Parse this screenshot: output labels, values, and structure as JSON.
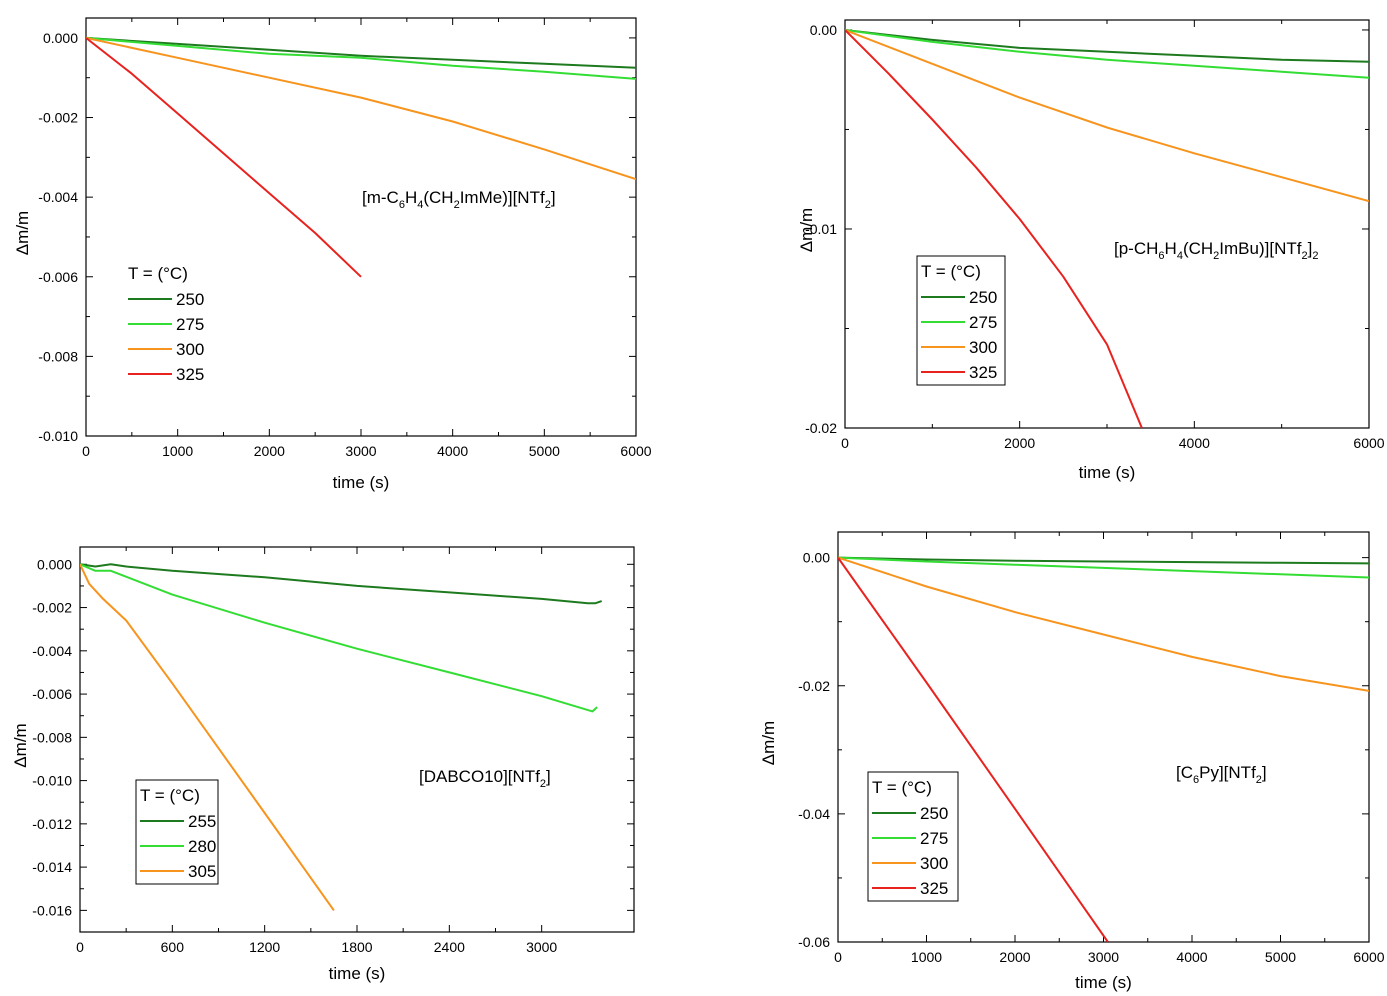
{
  "chart_data": [
    {
      "type": "line",
      "xlabel": "time (s)",
      "ylabel": "Δm/m",
      "xlim": [
        0,
        6000
      ],
      "ylim": [
        -0.01,
        0.0005
      ],
      "xticks": [
        "0",
        "1000",
        "2000",
        "3000",
        "4000",
        "5000",
        "6000"
      ],
      "yticks": [
        "0.000",
        "-0.002",
        "-0.004",
        "-0.006",
        "-0.008",
        "-0.010"
      ],
      "annotation": {
        "parts": [
          [
            "[m-C",
            ""
          ],
          [
            "6",
            "sub"
          ],
          [
            "H",
            ""
          ],
          [
            "4",
            "sub"
          ],
          [
            "(CH",
            ""
          ],
          [
            "2",
            "sub"
          ],
          [
            "ImMe)][NTf",
            ""
          ],
          [
            "2",
            "sub"
          ],
          [
            "]",
            ""
          ]
        ]
      },
      "legend": {
        "title": "T = (°C)",
        "placement": "left-middle",
        "framed": false
      },
      "series": [
        {
          "name": "250",
          "color": "#1e7a1e",
          "x": [
            0,
            1000,
            2000,
            3000,
            4000,
            5000,
            6000
          ],
          "y": [
            0,
            -0.00015,
            -0.0003,
            -0.00045,
            -0.00055,
            -0.00065,
            -0.00075
          ]
        },
        {
          "name": "275",
          "color": "#33dd33",
          "x": [
            0,
            1000,
            2000,
            3000,
            4000,
            5000,
            6000
          ],
          "y": [
            0,
            -0.0002,
            -0.0004,
            -0.0005,
            -0.0007,
            -0.00085,
            -0.00103
          ]
        },
        {
          "name": "300",
          "color": "#f7941d",
          "x": [
            0,
            1000,
            2000,
            3000,
            4000,
            5000,
            6000
          ],
          "y": [
            0,
            -0.0005,
            -0.001,
            -0.0015,
            -0.0021,
            -0.0028,
            -0.00355
          ]
        },
        {
          "name": "325",
          "color": "#e8221e",
          "x": [
            0,
            500,
            1000,
            1500,
            2000,
            2500,
            3000
          ],
          "y": [
            0,
            -0.0009,
            -0.0019,
            -0.0029,
            -0.0039,
            -0.0049,
            -0.006
          ]
        }
      ]
    },
    {
      "type": "line",
      "xlabel": "time (s)",
      "ylabel": "Δm/m",
      "xlim": [
        0,
        6000
      ],
      "ylim": [
        -0.02,
        0.0005
      ],
      "xticks": [
        "0",
        "2000",
        "4000",
        "6000"
      ],
      "yticks": [
        "0.00",
        "-0.01",
        "-0.02"
      ],
      "annotation": {
        "parts": [
          [
            "[p-CH",
            ""
          ],
          [
            "6",
            "sub"
          ],
          [
            "H",
            ""
          ],
          [
            "4",
            "sub"
          ],
          [
            "(CH",
            ""
          ],
          [
            "2",
            "sub"
          ],
          [
            "ImBu)][NTf",
            ""
          ],
          [
            "2",
            "sub"
          ],
          [
            "]",
            ""
          ],
          [
            "2",
            "sub"
          ]
        ]
      },
      "legend": {
        "title": "T = (°C)",
        "placement": "left-middle",
        "framed": true
      },
      "series": [
        {
          "name": "250",
          "color": "#1e7a1e",
          "x": [
            0,
            1000,
            2000,
            3000,
            4000,
            5000,
            6000
          ],
          "y": [
            0,
            -0.0005,
            -0.0009,
            -0.0011,
            -0.0013,
            -0.0015,
            -0.0016
          ]
        },
        {
          "name": "275",
          "color": "#33dd33",
          "x": [
            0,
            1000,
            2000,
            3000,
            4000,
            5000,
            6000
          ],
          "y": [
            0,
            -0.0006,
            -0.0011,
            -0.0015,
            -0.0018,
            -0.0021,
            -0.0024
          ]
        },
        {
          "name": "300",
          "color": "#f7941d",
          "x": [
            0,
            1000,
            2000,
            3000,
            4000,
            5000,
            6000
          ],
          "y": [
            0,
            -0.0017,
            -0.0034,
            -0.0049,
            -0.0062,
            -0.0074,
            -0.0086
          ]
        },
        {
          "name": "325",
          "color": "#e8221e",
          "x": [
            0,
            500,
            1000,
            1500,
            2000,
            2500,
            3000,
            3400
          ],
          "y": [
            0,
            -0.0022,
            -0.0045,
            -0.0069,
            -0.0095,
            -0.0124,
            -0.0158,
            -0.02
          ]
        }
      ]
    },
    {
      "type": "line",
      "xlabel": "time (s)",
      "ylabel": "Δm/m",
      "xlim": [
        0,
        3600
      ],
      "ylim": [
        -0.017,
        0.0008
      ],
      "xticks": [
        "0",
        "600",
        "1200",
        "1800",
        "2400",
        "3000"
      ],
      "yticks": [
        "0.000",
        "-0.002",
        "-0.004",
        "-0.006",
        "-0.008",
        "-0.010",
        "-0.012",
        "-0.014",
        "-0.016"
      ],
      "annotation": {
        "parts": [
          [
            "[DABCO10][NTf",
            ""
          ],
          [
            "2",
            "sub"
          ],
          [
            "]",
            ""
          ]
        ]
      },
      "legend": {
        "title": "T = (°C)",
        "placement": "left-lower",
        "framed": true
      },
      "series": [
        {
          "name": "255",
          "color": "#1e7a1e",
          "x": [
            0,
            100,
            200,
            300,
            600,
            1200,
            1800,
            2400,
            3000,
            3300,
            3350,
            3390
          ],
          "y": [
            0,
            -0.0001,
            0,
            -0.0001,
            -0.0003,
            -0.0006,
            -0.001,
            -0.0013,
            -0.0016,
            -0.0018,
            -0.0018,
            -0.0017
          ]
        },
        {
          "name": "280",
          "color": "#33dd33",
          "x": [
            0,
            100,
            200,
            600,
            1200,
            1800,
            2400,
            3000,
            3330,
            3360
          ],
          "y": [
            0,
            -0.0003,
            -0.0003,
            -0.0014,
            -0.0027,
            -0.0039,
            -0.005,
            -0.0061,
            -0.0068,
            -0.0066
          ]
        },
        {
          "name": "305",
          "color": "#f7941d",
          "x": [
            0,
            60,
            150,
            300,
            600,
            900,
            1200,
            1450,
            1650
          ],
          "y": [
            0,
            -0.0009,
            -0.0016,
            -0.0026,
            -0.0055,
            -0.0085,
            -0.0115,
            -0.014,
            -0.016
          ]
        }
      ]
    },
    {
      "type": "line",
      "xlabel": "time (s)",
      "ylabel": "Δm/m",
      "xlim": [
        0,
        6000
      ],
      "ylim": [
        -0.06,
        0.004
      ],
      "xticks": [
        "0",
        "1000",
        "2000",
        "3000",
        "4000",
        "5000",
        "6000"
      ],
      "yticks": [
        "0.00",
        "-0.02",
        "-0.04",
        "-0.06"
      ],
      "annotation": {
        "parts": [
          [
            "[C",
            ""
          ],
          [
            "6",
            "sub"
          ],
          [
            "Py][NTf",
            ""
          ],
          [
            "2",
            "sub"
          ],
          [
            "]",
            ""
          ]
        ]
      },
      "legend": {
        "title": "T = (°C)",
        "placement": "left-lower",
        "framed": true
      },
      "series": [
        {
          "name": "250",
          "color": "#1e7a1e",
          "x": [
            0,
            1000,
            2000,
            3000,
            4000,
            5000,
            6000
          ],
          "y": [
            0,
            -0.0003,
            -0.0005,
            -0.0006,
            -0.0007,
            -0.0008,
            -0.0009
          ]
        },
        {
          "name": "275",
          "color": "#33dd33",
          "x": [
            0,
            1000,
            2000,
            3000,
            4000,
            5000,
            6000
          ],
          "y": [
            0,
            -0.0006,
            -0.0011,
            -0.0016,
            -0.0021,
            -0.0026,
            -0.0031
          ]
        },
        {
          "name": "300",
          "color": "#f7941d",
          "x": [
            0,
            1000,
            2000,
            3000,
            4000,
            5000,
            6000
          ],
          "y": [
            0,
            -0.0045,
            -0.0085,
            -0.012,
            -0.0155,
            -0.0185,
            -0.0208
          ]
        },
        {
          "name": "325",
          "color": "#e8221e",
          "x": [
            0,
            1000,
            2000,
            3050
          ],
          "y": [
            0,
            -0.0195,
            -0.0392,
            -0.06
          ]
        }
      ]
    }
  ]
}
